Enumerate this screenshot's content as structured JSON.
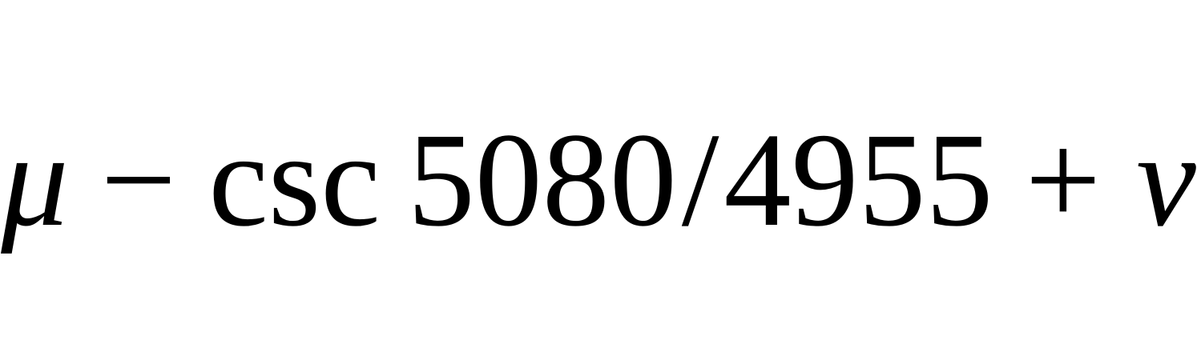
{
  "formula": {
    "mu": "μ",
    "minus": "−",
    "func": "csc",
    "numerator": "5080",
    "slash": "/",
    "denominator": "4955",
    "plus": "+",
    "v": "v"
  }
}
